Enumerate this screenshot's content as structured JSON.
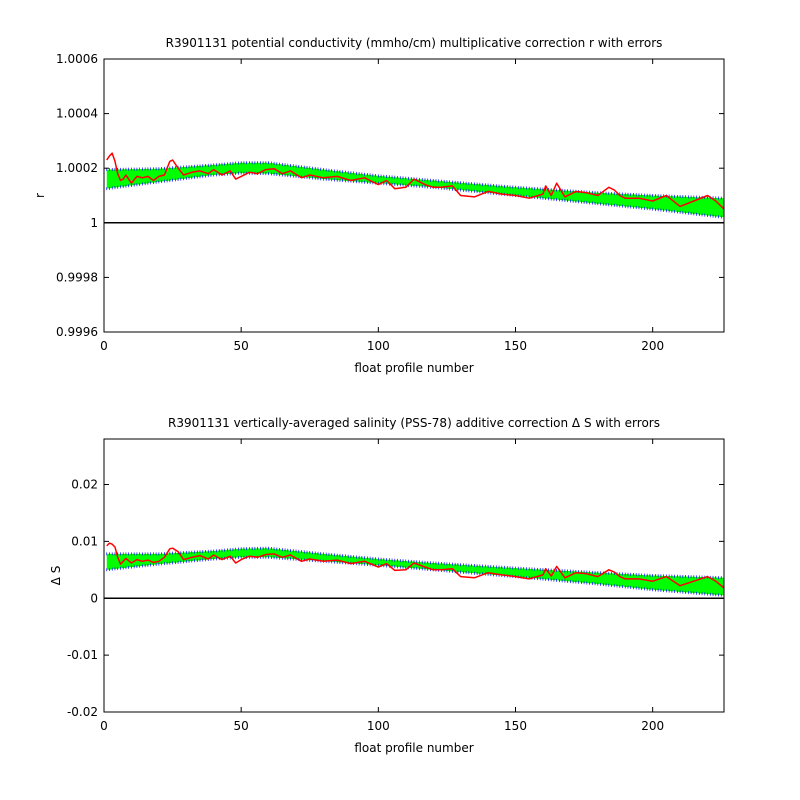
{
  "chart_data": [
    {
      "type": "line",
      "title": "R3901131 potential conductivity (mmho/cm) multiplicative correction r with errors",
      "xlabel": "float profile number",
      "ylabel": "r",
      "xlim": [
        0,
        226
      ],
      "ylim": [
        0.9996,
        1.0006
      ],
      "xticks": [
        0,
        50,
        100,
        150,
        200
      ],
      "xtick_labels": [
        "0",
        "50",
        "100",
        "150",
        "200"
      ],
      "yticks": [
        0.9996,
        0.9998,
        1.0,
        1.0002,
        1.0004,
        1.0006
      ],
      "ytick_labels": [
        "0.9996",
        "0.9998",
        "1",
        "1.0002",
        "1.0004",
        "1.0006"
      ],
      "reference_line": 1.0,
      "grid": false,
      "colors": {
        "error_band": "#00ff00",
        "error_bound": "#0000ff",
        "estimate": "#ff0000",
        "reference": "#000000"
      },
      "upper_bound": {
        "x": [
          1,
          20,
          40,
          50,
          60,
          80,
          100,
          120,
          150,
          180,
          200,
          226
        ],
        "y": [
          1.000195,
          1.000198,
          1.000212,
          1.00022,
          1.00022,
          1.000195,
          1.000172,
          1.000155,
          1.00013,
          1.00011,
          1.0001,
          1.00009
        ]
      },
      "lower_bound": {
        "x": [
          1,
          20,
          40,
          50,
          60,
          80,
          100,
          120,
          150,
          180,
          200,
          226
        ],
        "y": [
          1.000125,
          1.00015,
          1.000175,
          1.000182,
          1.00018,
          1.00016,
          1.000145,
          1.00013,
          1.0001,
          1.00007,
          1.00005,
          1.00002
        ]
      },
      "estimate": {
        "x": [
          1,
          2,
          3,
          4,
          5,
          6,
          7,
          8,
          10,
          12,
          14,
          16,
          18,
          20,
          22,
          24,
          25,
          27,
          29,
          32,
          35,
          38,
          40,
          43,
          46,
          48,
          50,
          53,
          56,
          59,
          62,
          65,
          68,
          72,
          75,
          80,
          85,
          90,
          95,
          100,
          103,
          106,
          110,
          113,
          117,
          120,
          123,
          127,
          130,
          135,
          140,
          145,
          150,
          155,
          160,
          161,
          163,
          165,
          168,
          172,
          176,
          180,
          184,
          186,
          188,
          190,
          195,
          200,
          205,
          210,
          215,
          220,
          223,
          226
        ],
        "y": [
          1.00023,
          1.000245,
          1.000255,
          1.000225,
          1.00018,
          1.000155,
          1.00016,
          1.000175,
          1.000145,
          1.00017,
          1.000165,
          1.00017,
          1.000155,
          1.00017,
          1.000175,
          1.000225,
          1.00023,
          1.0002,
          1.000175,
          1.000185,
          1.00019,
          1.00018,
          1.000195,
          1.000175,
          1.00019,
          1.00016,
          1.00017,
          1.000185,
          1.00018,
          1.000195,
          1.000198,
          1.00018,
          1.00019,
          1.000165,
          1.000175,
          1.000165,
          1.00017,
          1.000155,
          1.000165,
          1.00014,
          1.000155,
          1.000125,
          1.00013,
          1.00016,
          1.00014,
          1.00013,
          1.00013,
          1.000135,
          1.0001,
          1.000095,
          1.000115,
          1.000105,
          1.0001,
          1.00009,
          1.000105,
          1.000135,
          1.0001,
          1.000145,
          1.000095,
          1.000115,
          1.00011,
          1.0001,
          1.00013,
          1.00012,
          1.0001,
          1.00009,
          1.00009,
          1.00008,
          1.0001,
          1.00006,
          1.00008,
          1.0001,
          1.00008,
          1.00005
        ]
      }
    },
    {
      "type": "line",
      "title": "R3901131 vertically-averaged salinity (PSS-78) additive correction Δ S with errors",
      "xlabel": "float profile number",
      "ylabel": "Δ S",
      "xlim": [
        0,
        226
      ],
      "ylim": [
        -0.02,
        0.028
      ],
      "xticks": [
        0,
        50,
        100,
        150,
        200
      ],
      "xtick_labels": [
        "0",
        "50",
        "100",
        "150",
        "200"
      ],
      "yticks": [
        -0.02,
        -0.01,
        0,
        0.01,
        0.02
      ],
      "ytick_labels": [
        "-0.02",
        "-0.01",
        "0",
        "0.01",
        "0.02"
      ],
      "reference_line": 0,
      "grid": false,
      "colors": {
        "error_band": "#00ff00",
        "error_bound": "#0000ff",
        "estimate": "#ff0000",
        "reference": "#000000"
      },
      "upper_bound": {
        "x": [
          1,
          20,
          40,
          50,
          60,
          80,
          100,
          120,
          150,
          180,
          200,
          226
        ],
        "y": [
          0.0078,
          0.0078,
          0.0083,
          0.0087,
          0.0088,
          0.0078,
          0.0069,
          0.0062,
          0.0053,
          0.0045,
          0.004,
          0.0036
        ]
      },
      "lower_bound": {
        "x": [
          1,
          20,
          40,
          50,
          60,
          80,
          100,
          120,
          150,
          180,
          200,
          226
        ],
        "y": [
          0.005,
          0.006,
          0.0069,
          0.0072,
          0.0072,
          0.0065,
          0.0058,
          0.005,
          0.0038,
          0.0025,
          0.0015,
          0.0005
        ]
      },
      "estimate": {
        "x": [
          1,
          2,
          3,
          4,
          5,
          6,
          7,
          8,
          10,
          12,
          14,
          16,
          18,
          20,
          22,
          24,
          25,
          27,
          29,
          32,
          35,
          38,
          40,
          43,
          46,
          48,
          50,
          53,
          56,
          59,
          62,
          65,
          68,
          72,
          75,
          80,
          85,
          90,
          95,
          100,
          103,
          106,
          110,
          113,
          117,
          120,
          123,
          127,
          130,
          135,
          140,
          145,
          150,
          155,
          160,
          161,
          163,
          165,
          168,
          172,
          176,
          180,
          184,
          186,
          188,
          190,
          195,
          200,
          205,
          210,
          215,
          220,
          223,
          226
        ],
        "y": [
          0.0092,
          0.0097,
          0.0095,
          0.009,
          0.0072,
          0.006,
          0.0065,
          0.007,
          0.0062,
          0.0068,
          0.0065,
          0.0067,
          0.0063,
          0.0065,
          0.0072,
          0.0087,
          0.0088,
          0.0082,
          0.0068,
          0.0072,
          0.0075,
          0.0069,
          0.0076,
          0.0068,
          0.0074,
          0.0062,
          0.0068,
          0.0074,
          0.0072,
          0.0077,
          0.0078,
          0.0072,
          0.0076,
          0.0065,
          0.0069,
          0.0065,
          0.0067,
          0.0061,
          0.0065,
          0.0055,
          0.0061,
          0.0049,
          0.005,
          0.0062,
          0.0055,
          0.005,
          0.005,
          0.0052,
          0.0038,
          0.0036,
          0.0045,
          0.0041,
          0.0038,
          0.0034,
          0.0041,
          0.0052,
          0.0039,
          0.0056,
          0.0036,
          0.0045,
          0.0043,
          0.0038,
          0.005,
          0.0046,
          0.0038,
          0.0034,
          0.0034,
          0.003,
          0.0038,
          0.0022,
          0.003,
          0.0038,
          0.003,
          0.0018
        ]
      }
    }
  ]
}
